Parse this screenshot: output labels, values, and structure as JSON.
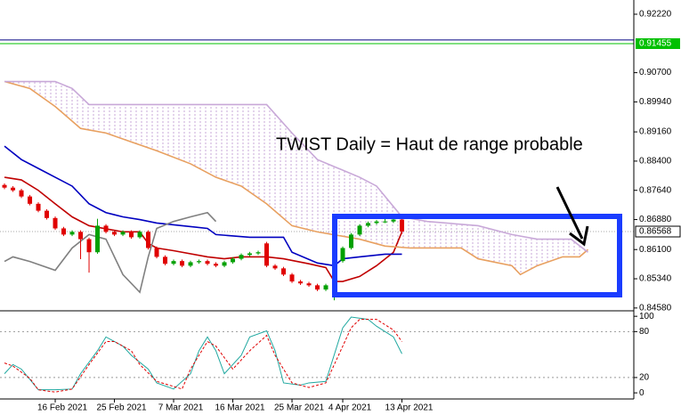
{
  "chart_data": [
    {
      "type": "candlestick",
      "annotation": "TWIST Daily = Haut de range probable",
      "xlim": [
        -0.53,
        74.42
      ],
      "xticks": [
        {
          "value": 6,
          "label": "16 Feb 2021"
        },
        {
          "value": 13,
          "label": "25 Feb 2021"
        },
        {
          "value": 20,
          "label": "7 Mar 2021"
        },
        {
          "value": 27,
          "label": "16 Mar 2021"
        },
        {
          "value": 34,
          "label": "25 Mar 2021"
        },
        {
          "value": 40,
          "label": "4 Apr 2021"
        },
        {
          "value": 47,
          "label": "13 Apr 2021"
        }
      ],
      "ylim": [
        0.8453,
        0.9259
      ],
      "yticks": [
        {
          "value": 0.9222,
          "label": "0.92220"
        },
        {
          "value": 0.907,
          "label": "0.90700"
        },
        {
          "value": 0.8994,
          "label": "0.89940"
        },
        {
          "value": 0.8916,
          "label": "0.89160"
        },
        {
          "value": 0.884,
          "label": "0.88400"
        },
        {
          "value": 0.8764,
          "label": "0.87640"
        },
        {
          "value": 0.8688,
          "label": "0.86880"
        },
        {
          "value": 0.861,
          "label": "0.86100"
        },
        {
          "value": 0.8534,
          "label": "0.85340"
        },
        {
          "value": 0.8458,
          "label": "0.84580"
        }
      ],
      "levels": [
        {
          "value": 0.9155,
          "color": "#000080"
        },
        {
          "value": 0.91455,
          "label": "0.91455",
          "color": "#00c000"
        }
      ],
      "last_price": {
        "value": 0.86568,
        "label": "0.86568"
      },
      "up_color": "#00a000",
      "down_color": "#e00000",
      "open": [
        0.8778,
        0.8771,
        0.8764,
        0.8748,
        0.8729,
        0.8711,
        0.8692,
        0.8665,
        0.8649,
        0.8656,
        0.8637,
        0.8603,
        0.8672,
        0.8656,
        0.8649,
        0.8656,
        0.8642,
        0.8656,
        0.8614,
        0.8591,
        0.8573,
        0.858,
        0.8568,
        0.8577,
        0.858,
        0.8573,
        0.8568,
        0.8577,
        0.8586,
        0.8596,
        0.86,
        0.8626,
        0.8568,
        0.8561,
        0.8545,
        0.8527,
        0.8522,
        0.8517,
        0.8506,
        0.851,
        0.858,
        0.8614,
        0.8649,
        0.8672,
        0.8679,
        0.8683,
        0.8683,
        0.8688
      ],
      "high": [
        0.8782,
        0.8775,
        0.8768,
        0.8752,
        0.8733,
        0.8715,
        0.8696,
        0.8669,
        0.866,
        0.866,
        0.8641,
        0.869,
        0.8676,
        0.866,
        0.866,
        0.866,
        0.866,
        0.866,
        0.8618,
        0.8595,
        0.8584,
        0.8584,
        0.8581,
        0.8584,
        0.8584,
        0.8577,
        0.8581,
        0.859,
        0.86,
        0.8604,
        0.8607,
        0.863,
        0.8572,
        0.8565,
        0.8549,
        0.8531,
        0.8526,
        0.8521,
        0.8521,
        0.8584,
        0.8618,
        0.8653,
        0.8676,
        0.8683,
        0.8687,
        0.869,
        0.8692,
        0.8692
      ],
      "low": [
        0.8767,
        0.876,
        0.8744,
        0.8725,
        0.8707,
        0.8688,
        0.8661,
        0.8645,
        0.8645,
        0.8585,
        0.855,
        0.8599,
        0.8652,
        0.8645,
        0.8645,
        0.8638,
        0.8638,
        0.861,
        0.8587,
        0.8569,
        0.8569,
        0.8564,
        0.8564,
        0.8573,
        0.8569,
        0.8564,
        0.8564,
        0.8573,
        0.8582,
        0.8592,
        0.8596,
        0.8564,
        0.8557,
        0.8541,
        0.8523,
        0.8518,
        0.8513,
        0.8502,
        0.8502,
        0.8478,
        0.8576,
        0.861,
        0.8645,
        0.8668,
        0.8675,
        0.8679,
        0.8679,
        0.865
      ],
      "close": [
        0.8771,
        0.8764,
        0.8748,
        0.8729,
        0.8711,
        0.8692,
        0.8665,
        0.8649,
        0.8656,
        0.8637,
        0.8603,
        0.8672,
        0.8656,
        0.8649,
        0.8656,
        0.8642,
        0.8656,
        0.8614,
        0.8591,
        0.8573,
        0.858,
        0.8568,
        0.8577,
        0.858,
        0.8573,
        0.8568,
        0.8577,
        0.8586,
        0.8596,
        0.86,
        0.8603,
        0.8568,
        0.8561,
        0.8545,
        0.8527,
        0.8522,
        0.8517,
        0.8506,
        0.8517,
        0.858,
        0.8614,
        0.8649,
        0.8672,
        0.8679,
        0.8683,
        0.8683,
        0.8688,
        0.8657
      ],
      "series": [
        {
          "color": "#c00000",
          "x": [
            0,
            2,
            4,
            6,
            8,
            10,
            14,
            16,
            17,
            18,
            20,
            24,
            26,
            28,
            31,
            33,
            36,
            38,
            39,
            40,
            42,
            44,
            46,
            47
          ],
          "values": [
            0.8798,
            0.8791,
            0.8764,
            0.8729,
            0.8695,
            0.8672,
            0.8656,
            0.8656,
            0.8626,
            0.8614,
            0.8607,
            0.8591,
            0.8586,
            0.8591,
            0.8591,
            0.8586,
            0.8573,
            0.8563,
            0.8527,
            0.8527,
            0.854,
            0.8568,
            0.8603,
            0.8656
          ]
        },
        {
          "color": "#0000c0",
          "x": [
            0,
            2,
            4,
            6,
            8,
            10,
            12,
            14,
            16,
            18,
            21,
            24,
            25,
            29,
            33,
            34,
            37,
            39,
            40,
            42,
            45,
            47
          ],
          "values": [
            0.8879,
            0.8844,
            0.8821,
            0.8798,
            0.8775,
            0.8729,
            0.8706,
            0.8695,
            0.8688,
            0.8679,
            0.8672,
            0.8665,
            0.8649,
            0.8642,
            0.8642,
            0.8603,
            0.8575,
            0.8568,
            0.8586,
            0.8591,
            0.8598,
            0.8598
          ]
        },
        {
          "color": "#808080",
          "x": [
            0,
            1,
            3,
            6,
            8,
            10,
            12,
            14,
            16,
            17,
            18,
            20,
            22,
            24,
            25
          ],
          "values": [
            0.8579,
            0.8591,
            0.8579,
            0.8556,
            0.8614,
            0.8649,
            0.8637,
            0.8545,
            0.8499,
            0.8591,
            0.8665,
            0.8683,
            0.8695,
            0.8706,
            0.8683
          ]
        },
        {
          "color": "#e8a060",
          "fill_to_next": "#c8a8d8",
          "x": [
            0,
            3,
            6,
            9,
            12,
            15,
            18,
            22,
            25,
            28,
            31,
            34,
            37,
            42,
            45,
            48,
            54,
            56,
            60,
            61,
            63,
            66,
            68,
            69
          ],
          "values": [
            0.9047,
            0.9029,
            0.8982,
            0.8925,
            0.8913,
            0.889,
            0.8867,
            0.8833,
            0.8798,
            0.8775,
            0.8729,
            0.8672,
            0.8656,
            0.8637,
            0.8619,
            0.8614,
            0.8614,
            0.8586,
            0.8568,
            0.8545,
            0.8568,
            0.8591,
            0.8591,
            0.861
          ]
        },
        {
          "color": "#c8a8d8",
          "x": [
            0,
            6,
            8,
            10,
            31,
            34,
            37,
            42,
            44,
            47,
            50,
            56,
            60,
            63,
            67,
            69
          ],
          "values": [
            0.9047,
            0.9047,
            0.9029,
            0.8987,
            0.8987,
            0.8913,
            0.8844,
            0.8798,
            0.8775,
            0.8695,
            0.8683,
            0.8672,
            0.8649,
            0.8637,
            0.8637,
            0.8603
          ]
        }
      ]
    },
    {
      "type": "line",
      "xlim": [
        -0.53,
        74.42
      ],
      "ylim": [
        -8,
        106
      ],
      "yticks": [
        100,
        80,
        20,
        0
      ],
      "series": [
        {
          "color": "#20a8a0",
          "x": [
            0,
            1,
            2,
            4,
            6,
            8,
            9,
            11,
            12,
            14,
            15,
            17,
            18,
            20,
            22,
            23,
            24,
            25,
            26,
            28,
            29,
            31,
            32,
            33,
            35,
            36,
            38,
            40,
            41,
            43,
            44,
            46,
            47
          ],
          "values": [
            25,
            37,
            31,
            4,
            4,
            5,
            25,
            55,
            73,
            61,
            49,
            31,
            13,
            5,
            25,
            55,
            73,
            55,
            25,
            49,
            73,
            81,
            55,
            13,
            10,
            13,
            15,
            85,
            99,
            96,
            87,
            73,
            51
          ]
        },
        {
          "color": "#e00000",
          "dash": true,
          "x": [
            0,
            1,
            3,
            4,
            6,
            8,
            10,
            12,
            13,
            15,
            16,
            18,
            21,
            22,
            24,
            25,
            27,
            29,
            31,
            32,
            34,
            36,
            38,
            41,
            42,
            44,
            46,
            47
          ],
          "values": [
            39,
            35,
            19,
            4,
            1,
            5,
            37,
            67,
            67,
            55,
            37,
            15,
            5,
            31,
            67,
            61,
            31,
            55,
            75,
            49,
            13,
            7,
            13,
            85,
            96,
            96,
            82,
            67
          ]
        }
      ]
    }
  ]
}
